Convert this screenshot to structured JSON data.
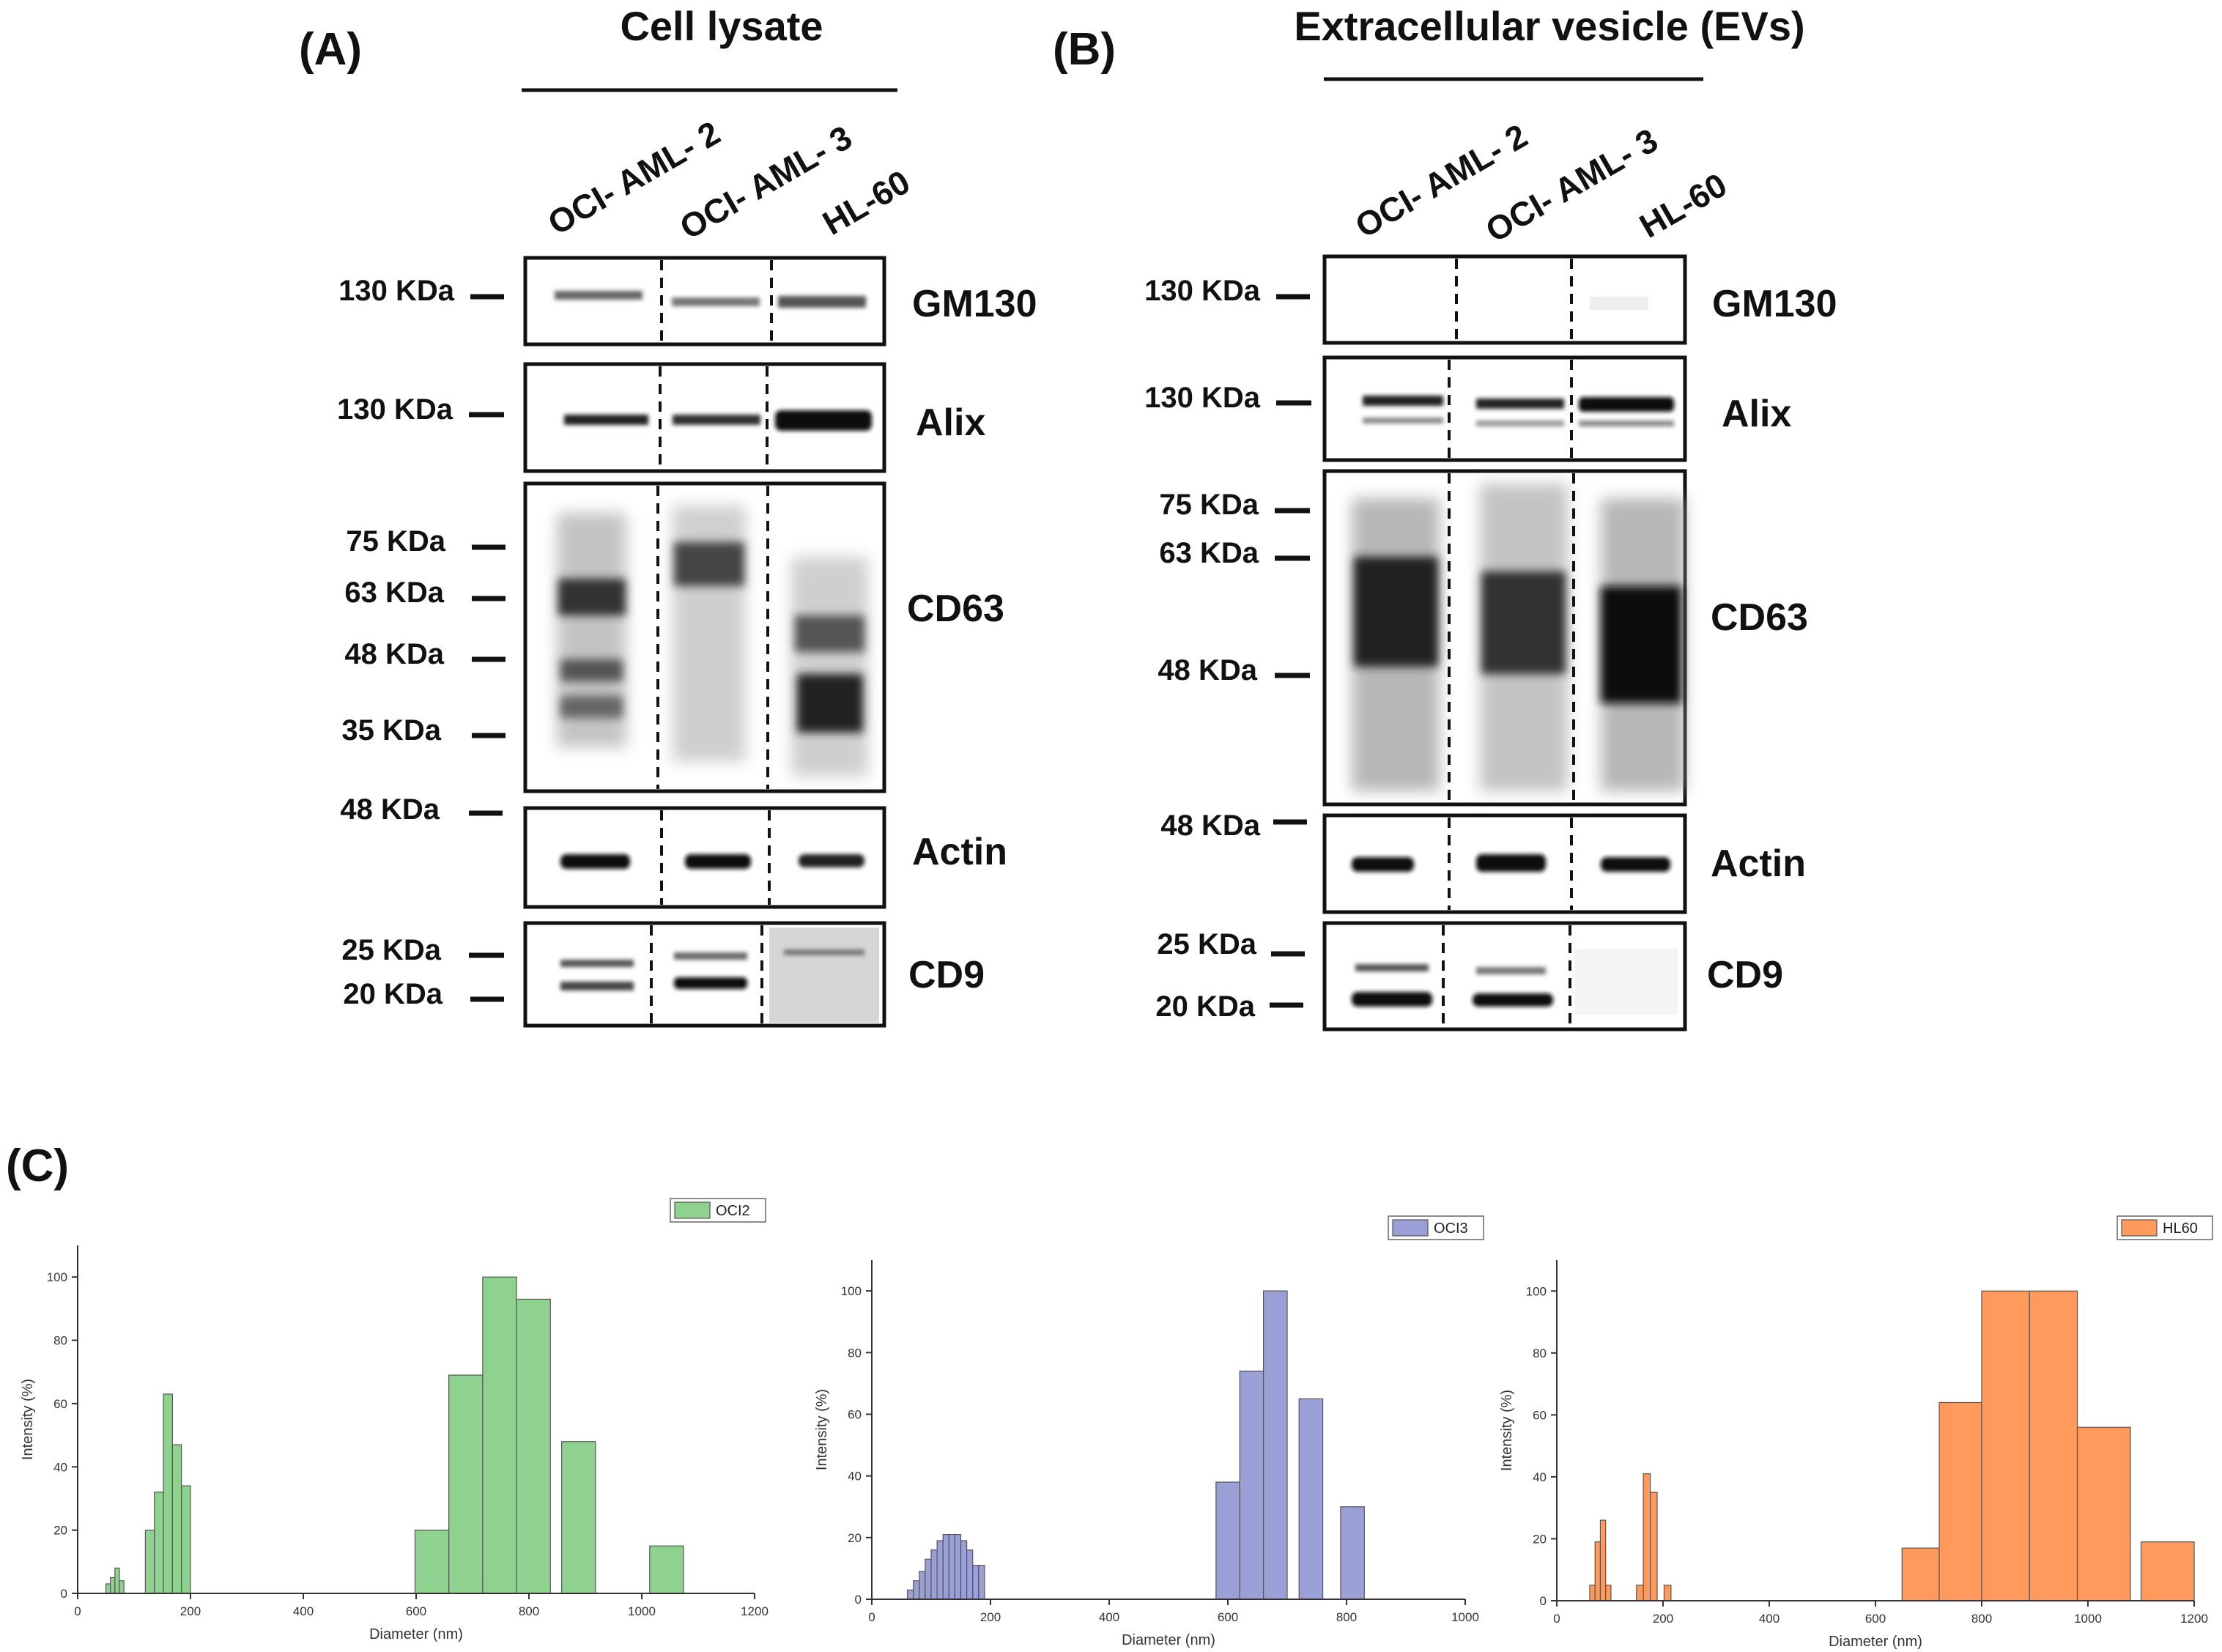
{
  "panel_a": {
    "label": "(A)",
    "header": "Cell lysate",
    "lanes": [
      "OCI- AML- 2",
      "OCI- AML- 3",
      "HL-60"
    ],
    "markers": {
      "gm130": [
        "130 KDa"
      ],
      "alix": [
        "130 KDa"
      ],
      "cd63": [
        "75 KDa",
        "63 KDa",
        "48 KDa",
        "35 KDa"
      ],
      "actin": [
        "48 KDa"
      ],
      "cd9": [
        "25 KDa",
        "20 KDa"
      ]
    }
  },
  "panel_b": {
    "label": "(B)",
    "header": "Extracellular vesicle (EVs)",
    "lanes": [
      "OCI- AML- 2",
      "OCI- AML- 3",
      "HL-60"
    ],
    "markers": {
      "gm130": [
        "130 KDa"
      ],
      "alix": [
        "130 KDa"
      ],
      "cd63": [
        "75 KDa",
        "63 KDa",
        "48 KDa"
      ],
      "actin": [
        "48 KDa"
      ],
      "cd9": [
        "25 KDa",
        "20 KDa"
      ]
    }
  },
  "proteins": [
    "GM130",
    "Alix",
    "CD63",
    "Actin",
    "CD9"
  ],
  "panel_c": {
    "label": "(C)"
  },
  "chart_data": [
    {
      "type": "bar",
      "title": "",
      "legend": "OCI2",
      "legend_position": "top-right",
      "color": "#8fd18f",
      "xlabel": "Diameter (nm)",
      "ylabel": "Intensity (%)",
      "xlim": [
        0,
        1200
      ],
      "ylim": [
        0,
        110
      ],
      "xticks": [
        0,
        200,
        400,
        600,
        800,
        1000,
        1200
      ],
      "yticks": [
        0,
        20,
        40,
        60,
        80,
        100
      ],
      "bars": [
        {
          "x": 50,
          "w": 8,
          "y": 3
        },
        {
          "x": 58,
          "w": 8,
          "y": 5
        },
        {
          "x": 66,
          "w": 8,
          "y": 8
        },
        {
          "x": 74,
          "w": 8,
          "y": 4
        },
        {
          "x": 120,
          "w": 16,
          "y": 20
        },
        {
          "x": 136,
          "w": 16,
          "y": 32
        },
        {
          "x": 152,
          "w": 16,
          "y": 63
        },
        {
          "x": 168,
          "w": 16,
          "y": 47
        },
        {
          "x": 184,
          "w": 16,
          "y": 34
        },
        {
          "x": 598,
          "w": 60,
          "y": 20
        },
        {
          "x": 658,
          "w": 60,
          "y": 69
        },
        {
          "x": 718,
          "w": 60,
          "y": 100
        },
        {
          "x": 778,
          "w": 60,
          "y": 93
        },
        {
          "x": 858,
          "w": 60,
          "y": 48
        },
        {
          "x": 1014,
          "w": 60,
          "y": 15
        }
      ]
    },
    {
      "type": "bar",
      "title": "",
      "legend": "OCI3",
      "legend_position": "top-right",
      "color": "#9a9fd6",
      "xlabel": "Diameter (nm)",
      "ylabel": "Intensity (%)",
      "xlim": [
        0,
        1000
      ],
      "ylim": [
        0,
        110
      ],
      "xticks": [
        0,
        200,
        400,
        600,
        800,
        1000
      ],
      "yticks": [
        0,
        20,
        40,
        60,
        80,
        100
      ],
      "bars": [
        {
          "x": 60,
          "w": 10,
          "y": 3
        },
        {
          "x": 70,
          "w": 10,
          "y": 6
        },
        {
          "x": 80,
          "w": 10,
          "y": 9
        },
        {
          "x": 90,
          "w": 10,
          "y": 13
        },
        {
          "x": 100,
          "w": 10,
          "y": 16
        },
        {
          "x": 110,
          "w": 10,
          "y": 19
        },
        {
          "x": 120,
          "w": 10,
          "y": 21
        },
        {
          "x": 130,
          "w": 10,
          "y": 21
        },
        {
          "x": 140,
          "w": 10,
          "y": 21
        },
        {
          "x": 150,
          "w": 10,
          "y": 19
        },
        {
          "x": 160,
          "w": 10,
          "y": 16
        },
        {
          "x": 170,
          "w": 10,
          "y": 11
        },
        {
          "x": 180,
          "w": 10,
          "y": 11
        },
        {
          "x": 580,
          "w": 40,
          "y": 38
        },
        {
          "x": 620,
          "w": 40,
          "y": 74
        },
        {
          "x": 660,
          "w": 40,
          "y": 100
        },
        {
          "x": 720,
          "w": 40,
          "y": 65
        },
        {
          "x": 790,
          "w": 40,
          "y": 30
        }
      ]
    },
    {
      "type": "bar",
      "title": "",
      "legend": "HL60",
      "legend_position": "top-right",
      "color": "#ff9a5c",
      "xlabel": "Diameter (nm)",
      "ylabel": "Intensity (%)",
      "xlim": [
        0,
        1200
      ],
      "ylim": [
        0,
        110
      ],
      "xticks": [
        0,
        200,
        400,
        600,
        800,
        1000,
        1200
      ],
      "yticks": [
        0,
        20,
        40,
        60,
        80,
        100
      ],
      "bars": [
        {
          "x": 62,
          "w": 10,
          "y": 5
        },
        {
          "x": 72,
          "w": 10,
          "y": 19
        },
        {
          "x": 82,
          "w": 10,
          "y": 26
        },
        {
          "x": 92,
          "w": 10,
          "y": 5
        },
        {
          "x": 150,
          "w": 13,
          "y": 5
        },
        {
          "x": 163,
          "w": 13,
          "y": 41
        },
        {
          "x": 176,
          "w": 13,
          "y": 35
        },
        {
          "x": 202,
          "w": 13,
          "y": 5
        },
        {
          "x": 650,
          "w": 70,
          "y": 17
        },
        {
          "x": 720,
          "w": 80,
          "y": 64
        },
        {
          "x": 800,
          "w": 90,
          "y": 100
        },
        {
          "x": 890,
          "w": 90,
          "y": 100
        },
        {
          "x": 980,
          "w": 100,
          "y": 56
        },
        {
          "x": 1100,
          "w": 100,
          "y": 19
        }
      ]
    }
  ]
}
